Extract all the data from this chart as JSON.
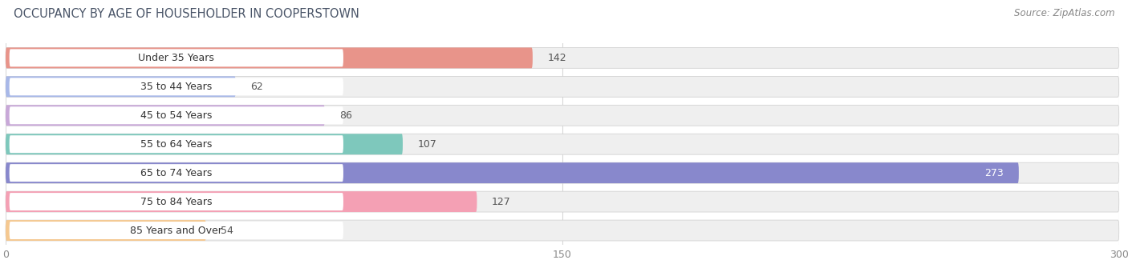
{
  "title": "OCCUPANCY BY AGE OF HOUSEHOLDER IN COOPERSTOWN",
  "source": "Source: ZipAtlas.com",
  "categories": [
    "Under 35 Years",
    "35 to 44 Years",
    "45 to 54 Years",
    "55 to 64 Years",
    "65 to 74 Years",
    "75 to 84 Years",
    "85 Years and Over"
  ],
  "values": [
    142,
    62,
    86,
    107,
    273,
    127,
    54
  ],
  "bar_colors": [
    "#e8948a",
    "#a8b8e8",
    "#c8a8d8",
    "#7ec8bc",
    "#8888cc",
    "#f4a0b4",
    "#f5c890"
  ],
  "xlim": [
    0,
    300
  ],
  "xticks": [
    0,
    150,
    300
  ],
  "title_fontsize": 10.5,
  "source_fontsize": 8.5,
  "label_fontsize": 9,
  "value_fontsize": 9,
  "tick_fontsize": 9,
  "background_color": "#ffffff",
  "bar_height": 0.72,
  "inside_threshold": 250,
  "bar_bg_color": "#efefef",
  "label_pill_color": "#ffffff",
  "grid_color": "#d8d8d8",
  "title_color": "#4a5568",
  "source_color": "#888888",
  "tick_color": "#888888",
  "value_color_outside": "#555555",
  "value_color_inside": "#ffffff"
}
